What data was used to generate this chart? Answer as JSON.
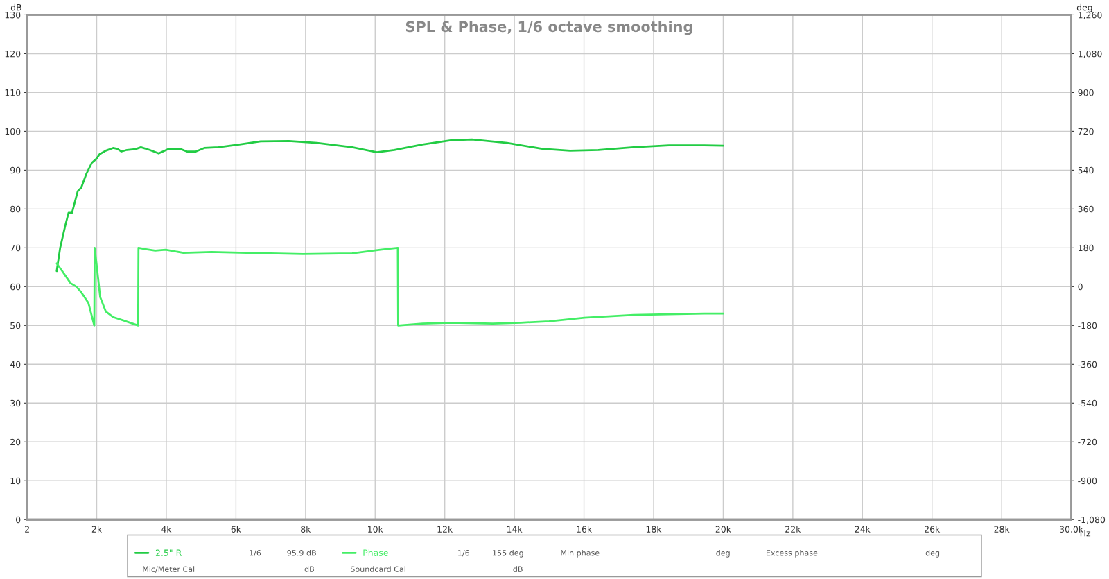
{
  "chart_data": {
    "type": "line",
    "title": "SPL & Phase, 1/6 octave smoothing",
    "xlabel": "Hz",
    "ylabel": "dB",
    "y2label": "deg",
    "xlim": [
      2,
      30000
    ],
    "xticks": [
      {
        "value": 2,
        "label": "2"
      },
      {
        "value": 2000,
        "label": "2k"
      },
      {
        "value": 4000,
        "label": "4k"
      },
      {
        "value": 6000,
        "label": "6k"
      },
      {
        "value": 8000,
        "label": "8k"
      },
      {
        "value": 10000,
        "label": "10k"
      },
      {
        "value": 12000,
        "label": "12k"
      },
      {
        "value": 14000,
        "label": "14k"
      },
      {
        "value": 16000,
        "label": "16k"
      },
      {
        "value": 18000,
        "label": "18k"
      },
      {
        "value": 20000,
        "label": "20k"
      },
      {
        "value": 22000,
        "label": "22k"
      },
      {
        "value": 24000,
        "label": "24k"
      },
      {
        "value": 26000,
        "label": "26k"
      },
      {
        "value": 28000,
        "label": "28k"
      },
      {
        "value": 30000,
        "label": "30.0k"
      }
    ],
    "ylim": [
      0,
      130
    ],
    "yticks": [
      0,
      10,
      20,
      30,
      40,
      50,
      60,
      70,
      80,
      90,
      100,
      110,
      120,
      130
    ],
    "y2lim": [
      -1080,
      1260
    ],
    "y2ticks": [
      {
        "value": -1080,
        "label": "-1,080"
      },
      -900,
      -720,
      -540,
      -360,
      -180,
      0,
      180,
      360,
      540,
      720,
      900,
      {
        "value": 1080,
        "label": "1,080"
      },
      {
        "value": 1260,
        "label": "1,260"
      }
    ],
    "grid": true,
    "legend": "bottom",
    "line_style": "solid",
    "series": [
      {
        "name": "2.5\" R",
        "color": "#22cc44",
        "x": [
          850,
          950,
          1090,
          1190,
          1290,
          1375,
          1455,
          1556,
          1700,
          1860,
          2000,
          2080,
          2260,
          2470,
          2590,
          2710,
          2870,
          3110,
          3270,
          3520,
          3780,
          4080,
          4390,
          4590,
          4850,
          5090,
          5500,
          6100,
          6710,
          7520,
          8330,
          9340,
          10050,
          10550,
          11360,
          12170,
          12780,
          13790,
          14800,
          15600,
          16410,
          17420,
          18440,
          19450,
          20000
        ],
        "values": [
          64,
          70,
          75.5,
          79,
          79,
          81.9,
          84.6,
          85.5,
          89,
          91.9,
          93,
          94.1,
          95,
          95.7,
          95.5,
          94.8,
          95.2,
          95.4,
          95.9,
          95.2,
          94.3,
          95.5,
          95.5,
          94.8,
          94.8,
          95.7,
          95.9,
          96.6,
          97.4,
          97.5,
          97,
          95.9,
          94.6,
          95.2,
          96.6,
          97.7,
          97.9,
          97,
          95.5,
          95,
          95.2,
          95.9,
          96.4,
          96.4,
          96.3
        ]
      },
      {
        "name": "Phase",
        "color": "#44ee66",
        "axis": "y2",
        "x": [
          850,
          1010,
          1250,
          1415,
          1556,
          1760,
          1930,
          1940,
          2000,
          2100,
          2260,
          2470,
          2770,
          3190,
          3200,
          3380,
          3680,
          3980,
          4490,
          5300,
          6300,
          7920,
          9340,
          10150,
          10650,
          10660,
          11360,
          12170,
          13380,
          14190,
          15000,
          16010,
          17420,
          19450,
          20000
        ],
        "values": [
          108,
          72,
          16,
          0,
          -26,
          -75,
          -180,
          180,
          98,
          -49,
          -115,
          -141,
          -157,
          -180,
          180,
          174,
          167,
          171,
          157,
          161,
          157,
          151,
          154,
          171,
          180,
          -180,
          -171,
          -167,
          -171,
          -167,
          -161,
          -144,
          -131,
          -125,
          -125
        ]
      }
    ],
    "annotations": [
      "1/6",
      "95.9 dB",
      "1/6",
      "155 deg",
      "Min phase",
      "deg",
      "Excess phase",
      "deg",
      "Mic/Meter Cal",
      "dB",
      "Soundcard Cal",
      "dB"
    ]
  }
}
